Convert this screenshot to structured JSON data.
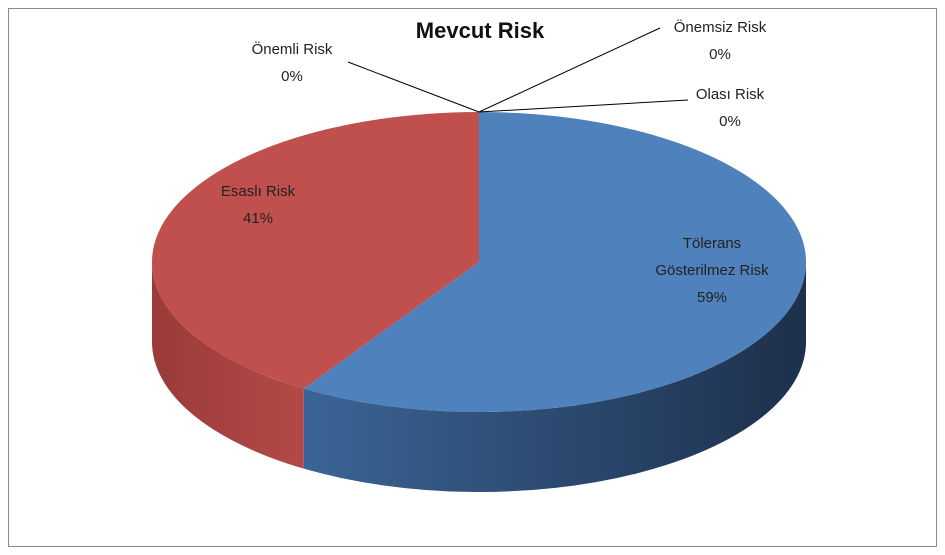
{
  "chart_data": {
    "type": "pie",
    "title": "Mevcut Risk",
    "categories": [
      "Tölerans Gösterilmez Risk",
      "Esaslı Risk",
      "Önemli Risk",
      "Önemsiz Risk",
      "Olası Risk"
    ],
    "values": [
      59,
      41,
      0,
      0,
      0
    ],
    "value_labels": [
      "59%",
      "41%",
      "0%",
      "0%",
      "0%"
    ],
    "colors": [
      "#4f81bd",
      "#c0504d",
      "#9bbb59",
      "#8064a2",
      "#4bacc6"
    ]
  }
}
